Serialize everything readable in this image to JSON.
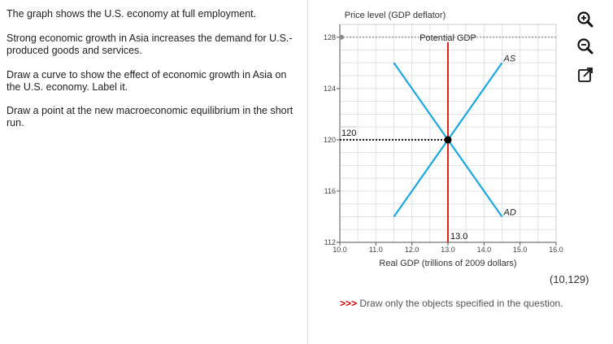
{
  "question": {
    "p1": "The graph shows the U.S. economy at full employment.",
    "p2": "Strong economic growth in Asia increases the demand for U.S.-produced goods and services.",
    "p3": "Draw a curve to show the effect of economic growth in Asia on the U.S. economy. Label it.",
    "p4": "Draw a point at the new macroeconomic equilibrium in the short run."
  },
  "chart_data": {
    "type": "line",
    "ylabel": "Price level (GDP deflator)",
    "xlabel": "Real GDP (trillions of 2009 dollars)",
    "xlim": [
      10.0,
      16.0
    ],
    "ylim": [
      112,
      129
    ],
    "x_ticks": [
      "10.0",
      "11.0",
      "12.0",
      "13.0",
      "14.0",
      "15.0",
      "16.0"
    ],
    "y_ticks": [
      "112",
      "116",
      "120",
      "124",
      "128"
    ],
    "grid": true,
    "series": [
      {
        "name": "AS",
        "color": "#1aa7e6",
        "points": [
          [
            11.5,
            114
          ],
          [
            14.5,
            126
          ]
        ]
      },
      {
        "name": "AD",
        "color": "#1aa7e6",
        "points": [
          [
            11.5,
            126
          ],
          [
            14.5,
            114
          ]
        ]
      }
    ],
    "potential_gdp": {
      "label": "Potential GDP",
      "x": 13.0,
      "color": "#e0241a"
    },
    "equilibrium": {
      "x": 13.0,
      "y": 120,
      "x_label": "13.0",
      "y_label": "120"
    },
    "dotted_guide": {
      "y": 128
    }
  },
  "tools": {
    "zoom_in": "zoom-in-icon",
    "zoom_out": "zoom-out-icon",
    "popout": "popout-icon"
  },
  "coord_readout": "(10,129)",
  "instruction": {
    "arrows": ">>>",
    "text": "Draw only the objects specified in the question."
  }
}
